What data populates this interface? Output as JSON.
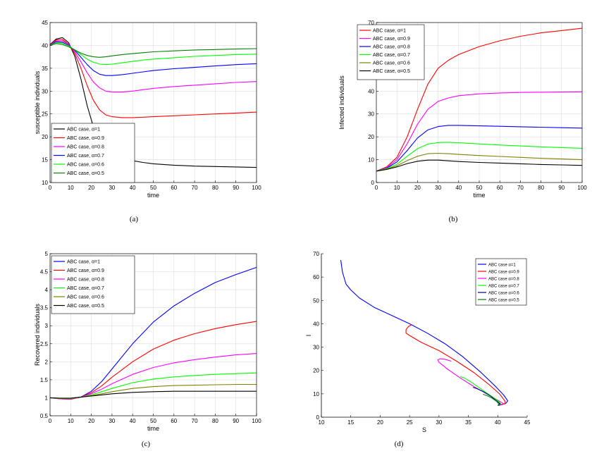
{
  "chart_data": [
    {
      "type": "line",
      "panel": "a",
      "caption": "(a)",
      "xlabel": "time",
      "ylabel": "susceptible individuals",
      "xlim": [
        0,
        100
      ],
      "ylim": [
        10,
        45
      ],
      "xticks": [
        0,
        10,
        20,
        30,
        40,
        50,
        60,
        70,
        80,
        90,
        100
      ],
      "yticks": [
        10,
        15,
        20,
        25,
        30,
        35,
        40,
        45
      ],
      "grid": true,
      "legend_position": "lower-left",
      "series": [
        {
          "name": "ABC case, α=1",
          "color": "#000000",
          "x": [
            0,
            3,
            6,
            9,
            12,
            15,
            18,
            21,
            24,
            27,
            30,
            35,
            40,
            45,
            50,
            60,
            70,
            80,
            90,
            100
          ],
          "y": [
            40.2,
            41.4,
            41.7,
            40.6,
            37.6,
            32.6,
            26.8,
            22.2,
            19.4,
            17.8,
            16.6,
            15.4,
            14.8,
            14.4,
            14.1,
            13.8,
            13.6,
            13.5,
            13.4,
            13.3
          ]
        },
        {
          "name": "ABC case, α=0.9",
          "color": "#ff0000",
          "x": [
            0,
            3,
            6,
            9,
            12,
            15,
            18,
            21,
            24,
            27,
            30,
            35,
            40,
            45,
            50,
            60,
            70,
            80,
            90,
            100
          ],
          "y": [
            40.1,
            41.2,
            41.3,
            40.3,
            38.2,
            35.0,
            31.2,
            28.0,
            25.9,
            24.8,
            24.4,
            24.2,
            24.2,
            24.3,
            24.4,
            24.6,
            24.8,
            25.0,
            25.2,
            25.4
          ]
        },
        {
          "name": "ABC case, α=0.8",
          "color": "#ff00ff",
          "x": [
            0,
            3,
            6,
            9,
            12,
            15,
            18,
            21,
            24,
            27,
            30,
            35,
            40,
            45,
            50,
            60,
            70,
            80,
            90,
            100
          ],
          "y": [
            40.1,
            41.0,
            41.0,
            40.2,
            38.6,
            36.4,
            34.0,
            32.0,
            30.7,
            30.0,
            29.8,
            29.8,
            30.0,
            30.3,
            30.6,
            31.0,
            31.3,
            31.6,
            31.9,
            32.1
          ]
        },
        {
          "name": "ABC case, α=0.7",
          "color": "#0000ff",
          "x": [
            0,
            3,
            6,
            9,
            12,
            15,
            18,
            21,
            24,
            27,
            30,
            35,
            40,
            45,
            50,
            60,
            70,
            80,
            90,
            100
          ],
          "y": [
            40.0,
            40.8,
            40.7,
            40.0,
            38.9,
            37.4,
            35.8,
            34.5,
            33.7,
            33.4,
            33.4,
            33.6,
            33.9,
            34.2,
            34.5,
            34.9,
            35.2,
            35.5,
            35.8,
            36.0
          ]
        },
        {
          "name": "ABC case, α=0.6",
          "color": "#00ff00",
          "x": [
            0,
            3,
            6,
            9,
            12,
            15,
            18,
            21,
            24,
            27,
            30,
            35,
            40,
            45,
            50,
            60,
            70,
            80,
            90,
            100
          ],
          "y": [
            40.0,
            40.6,
            40.5,
            39.9,
            39.0,
            38.0,
            37.0,
            36.3,
            35.9,
            35.8,
            35.9,
            36.2,
            36.5,
            36.8,
            37.0,
            37.3,
            37.6,
            37.8,
            38.0,
            38.1
          ]
        },
        {
          "name": "ABC case, α=0.5",
          "color": "#008000",
          "x": [
            0,
            3,
            6,
            9,
            12,
            15,
            18,
            21,
            24,
            27,
            30,
            35,
            40,
            45,
            50,
            60,
            70,
            80,
            90,
            100
          ],
          "y": [
            40.0,
            40.4,
            40.2,
            39.7,
            39.0,
            38.3,
            37.8,
            37.5,
            37.4,
            37.5,
            37.7,
            38.0,
            38.2,
            38.4,
            38.6,
            38.8,
            39.0,
            39.1,
            39.2,
            39.3
          ]
        }
      ]
    },
    {
      "type": "line",
      "panel": "b",
      "caption": "(b)",
      "xlabel": "time",
      "ylabel": "Infected individuals",
      "xlim": [
        0,
        100
      ],
      "ylim": [
        0,
        70
      ],
      "xticks": [
        0,
        10,
        20,
        30,
        40,
        50,
        60,
        70,
        80,
        90,
        100
      ],
      "yticks": [
        0,
        10,
        20,
        30,
        40,
        50,
        60,
        70
      ],
      "grid": true,
      "legend_position": "top-left",
      "series": [
        {
          "name": "ABC case, α=1",
          "color": "#ff0000",
          "x": [
            0,
            5,
            10,
            15,
            20,
            25,
            30,
            35,
            40,
            50,
            60,
            70,
            80,
            90,
            100
          ],
          "y": [
            5,
            6.8,
            11,
            20,
            32,
            43,
            50,
            53.5,
            56,
            59.5,
            62,
            64,
            65.5,
            66.5,
            67.5
          ]
        },
        {
          "name": "ABC case, α=0.9",
          "color": "#ff00ff",
          "x": [
            0,
            5,
            10,
            15,
            20,
            25,
            30,
            35,
            40,
            50,
            60,
            70,
            80,
            90,
            100
          ],
          "y": [
            5,
            6.5,
            10,
            17,
            25.5,
            32,
            35.5,
            37,
            38,
            38.8,
            39.2,
            39.4,
            39.5,
            39.6,
            39.7
          ]
        },
        {
          "name": "ABC case, α=0.8",
          "color": "#0000ff",
          "x": [
            0,
            5,
            10,
            15,
            20,
            25,
            30,
            35,
            40,
            50,
            60,
            70,
            80,
            90,
            100
          ],
          "y": [
            5,
            6.3,
            9,
            14,
            19.5,
            23,
            24.5,
            25,
            25,
            24.8,
            24.6,
            24.4,
            24.2,
            24.0,
            23.8
          ]
        },
        {
          "name": "ABC case, α=0.7",
          "color": "#00ff00",
          "x": [
            0,
            5,
            10,
            15,
            20,
            25,
            30,
            35,
            40,
            50,
            60,
            70,
            80,
            90,
            100
          ],
          "y": [
            5,
            6.1,
            8,
            11.5,
            14.8,
            16.8,
            17.5,
            17.6,
            17.4,
            16.9,
            16.4,
            16.0,
            15.6,
            15.3,
            15.0
          ]
        },
        {
          "name": "ABC case, α=0.6",
          "color": "#808000",
          "x": [
            0,
            5,
            10,
            15,
            20,
            25,
            30,
            35,
            40,
            50,
            60,
            70,
            80,
            90,
            100
          ],
          "y": [
            5,
            5.9,
            7.3,
            9.6,
            11.5,
            12.6,
            12.8,
            12.6,
            12.3,
            11.8,
            11.4,
            11.0,
            10.6,
            10.3,
            10.0
          ]
        },
        {
          "name": "ABC case, α=0.5",
          "color": "#000000",
          "x": [
            0,
            5,
            10,
            15,
            20,
            25,
            30,
            35,
            40,
            50,
            60,
            70,
            80,
            90,
            100
          ],
          "y": [
            5,
            5.7,
            6.8,
            8.3,
            9.3,
            9.8,
            9.8,
            9.5,
            9.2,
            8.8,
            8.5,
            8.2,
            7.9,
            7.7,
            7.5
          ]
        }
      ]
    },
    {
      "type": "line",
      "panel": "c",
      "caption": "(c)",
      "xlabel": "time",
      "ylabel": "Recovered individuals",
      "xlim": [
        0,
        100
      ],
      "ylim": [
        0.5,
        5
      ],
      "xticks": [
        0,
        10,
        20,
        30,
        40,
        50,
        60,
        70,
        80,
        90,
        100
      ],
      "yticks": [
        0.5,
        1,
        1.5,
        2,
        2.5,
        3,
        3.5,
        4,
        4.5,
        5
      ],
      "grid": true,
      "legend_position": "top-left",
      "series": [
        {
          "name": "ABC case, α=1",
          "color": "#0000ff",
          "x": [
            0,
            5,
            10,
            15,
            20,
            25,
            30,
            40,
            50,
            60,
            70,
            80,
            90,
            100
          ],
          "y": [
            1.0,
            0.97,
            0.96,
            1.02,
            1.18,
            1.45,
            1.8,
            2.5,
            3.1,
            3.55,
            3.9,
            4.2,
            4.42,
            4.62
          ]
        },
        {
          "name": "ABC case, α=0.9",
          "color": "#ff0000",
          "x": [
            0,
            5,
            10,
            15,
            20,
            25,
            30,
            40,
            50,
            60,
            70,
            80,
            90,
            100
          ],
          "y": [
            1.0,
            0.97,
            0.96,
            1.02,
            1.14,
            1.33,
            1.57,
            2.0,
            2.35,
            2.6,
            2.78,
            2.92,
            3.03,
            3.12
          ]
        },
        {
          "name": "ABC case, α=0.8",
          "color": "#ff00ff",
          "x": [
            0,
            5,
            10,
            15,
            20,
            25,
            30,
            40,
            50,
            60,
            70,
            80,
            90,
            100
          ],
          "y": [
            1.0,
            0.97,
            0.97,
            1.02,
            1.11,
            1.24,
            1.39,
            1.65,
            1.84,
            1.97,
            2.06,
            2.13,
            2.19,
            2.23
          ]
        },
        {
          "name": "ABC case, α=0.7",
          "color": "#00ff00",
          "x": [
            0,
            5,
            10,
            15,
            20,
            25,
            30,
            40,
            50,
            60,
            70,
            80,
            90,
            100
          ],
          "y": [
            1.0,
            0.98,
            0.98,
            1.02,
            1.08,
            1.17,
            1.26,
            1.42,
            1.52,
            1.58,
            1.62,
            1.65,
            1.67,
            1.69
          ]
        },
        {
          "name": "ABC case, α=0.6",
          "color": "#808000",
          "x": [
            0,
            5,
            10,
            15,
            20,
            25,
            30,
            40,
            50,
            60,
            70,
            80,
            90,
            100
          ],
          "y": [
            1.0,
            0.98,
            0.99,
            1.02,
            1.06,
            1.11,
            1.17,
            1.26,
            1.31,
            1.34,
            1.35,
            1.36,
            1.37,
            1.37
          ]
        },
        {
          "name": "ABC case, α=0.5",
          "color": "#000000",
          "x": [
            0,
            5,
            10,
            15,
            20,
            25,
            30,
            40,
            50,
            60,
            70,
            80,
            90,
            100
          ],
          "y": [
            1.0,
            0.99,
            0.99,
            1.02,
            1.05,
            1.08,
            1.11,
            1.15,
            1.17,
            1.18,
            1.18,
            1.18,
            1.18,
            1.18
          ]
        }
      ]
    },
    {
      "type": "line",
      "panel": "d",
      "caption": "(d)",
      "xlabel": "S",
      "ylabel": "I",
      "xlim": [
        10,
        45
      ],
      "ylim": [
        0,
        70
      ],
      "xticks": [
        10,
        15,
        20,
        25,
        30,
        35,
        40,
        45
      ],
      "yticks": [
        0,
        10,
        20,
        30,
        40,
        50,
        60,
        70
      ],
      "grid": false,
      "legend_position": "top-right",
      "series": [
        {
          "name": "ABC case α=1",
          "color": "#0000ff",
          "x": [
            13.3,
            13.6,
            14.2,
            15.0,
            16.5,
            19,
            22,
            25,
            28,
            31,
            34,
            37,
            39.5,
            41.0,
            41.7,
            41.4,
            40.2
          ],
          "y": [
            67.3,
            62,
            57,
            54.5,
            51,
            47,
            43.5,
            40,
            36,
            31.5,
            26,
            19.5,
            13.5,
            9.5,
            7,
            6,
            5
          ]
        },
        {
          "name": "ABC case α=0.9",
          "color": "#ff0000",
          "x": [
            25.4,
            24.8,
            24.4,
            24.4,
            25.0,
            27,
            30,
            33,
            36,
            38.5,
            40.3,
            41.2,
            41.3,
            40.1
          ],
          "y": [
            39.7,
            38.8,
            37.5,
            36,
            35,
            32,
            28.5,
            24,
            19,
            14,
            10,
            7,
            5.8,
            5
          ]
        },
        {
          "name": "ABC case α=0.8",
          "color": "#ff00ff",
          "x": [
            32.1,
            31.0,
            30.2,
            29.8,
            30.0,
            31.5,
            33.5,
            36,
            38.5,
            40.2,
            41.0,
            40.1
          ],
          "y": [
            24,
            24.8,
            25,
            24.5,
            23.5,
            20.5,
            17,
            13,
            9.5,
            7,
            5.8,
            5
          ]
        },
        {
          "name": "ABC case α=0.7",
          "color": "#00ff00",
          "x": [
            33.6,
            33.8,
            34.3,
            35.5,
            37.5,
            39.2,
            40.3,
            40.5,
            40.0
          ],
          "y": [
            17.6,
            17.2,
            16.8,
            15,
            11.5,
            8.5,
            6.5,
            5.6,
            5
          ]
        },
        {
          "name": "ABC case α=0.6",
          "color": "#000080",
          "x": [
            35.8,
            36.5,
            37.5,
            38.8,
            39.8,
            40.4,
            40.0
          ],
          "y": [
            12.8,
            12.2,
            11,
            9,
            7,
            5.7,
            5
          ]
        },
        {
          "name": "ABC case α=0.5",
          "color": "#008000",
          "x": [
            37.5,
            38.2,
            39.0,
            39.8,
            40.2,
            40.0
          ],
          "y": [
            9.8,
            9.2,
            8.2,
            6.8,
            5.6,
            5
          ]
        }
      ]
    }
  ]
}
